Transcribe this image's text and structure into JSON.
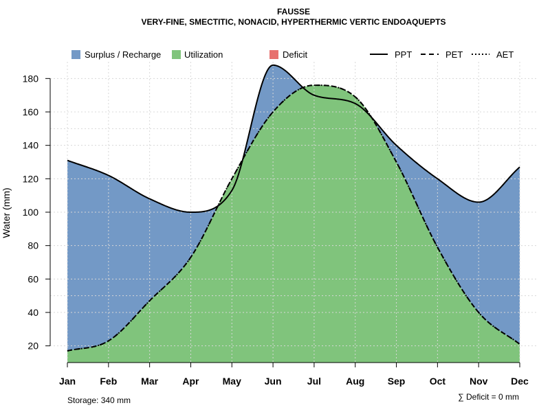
{
  "chart_data": {
    "type": "area",
    "title": "FAUSSE",
    "subtitle": "VERY-FINE, SMECTITIC, NONACID, HYPERTHERMIC VERTIC ENDOAQUEPTS",
    "ylabel": "Water (mm)",
    "xlabel": "",
    "ylim": [
      10,
      190
    ],
    "yticks": [
      20,
      40,
      60,
      80,
      100,
      120,
      140,
      160,
      180
    ],
    "categories": [
      "Jan",
      "Feb",
      "Mar",
      "Apr",
      "May",
      "Jun",
      "Jul",
      "Aug",
      "Sep",
      "Oct",
      "Nov",
      "Dec"
    ],
    "series": [
      {
        "name": "PPT",
        "style": "solid",
        "values": [
          131,
          122,
          108,
          100,
          113,
          188,
          170,
          165,
          140,
          120,
          106,
          127
        ]
      },
      {
        "name": "PET",
        "style": "dashed",
        "values": [
          17,
          23,
          47,
          73,
          120,
          160,
          176,
          169,
          130,
          79,
          40,
          21
        ]
      },
      {
        "name": "AET",
        "style": "dotted",
        "values": [
          17,
          23,
          47,
          73,
          120,
          160,
          176,
          169,
          130,
          79,
          40,
          21
        ]
      }
    ],
    "legend": [
      {
        "name": "Surplus / Recharge",
        "color": "#7399C6"
      },
      {
        "name": "Utilization",
        "color": "#80C47C"
      },
      {
        "name": "Deficit",
        "color": "#E7706E"
      }
    ],
    "reference_lines": [
      50,
      150
    ],
    "storage_label": "Storage: 340 mm",
    "deficit_label": "∑ Deficit = 0 mm",
    "colors": {
      "surplus": "#7399C6",
      "utilization": "#80C47C",
      "deficit": "#E7706E",
      "grid": "#d8d8d8"
    }
  }
}
